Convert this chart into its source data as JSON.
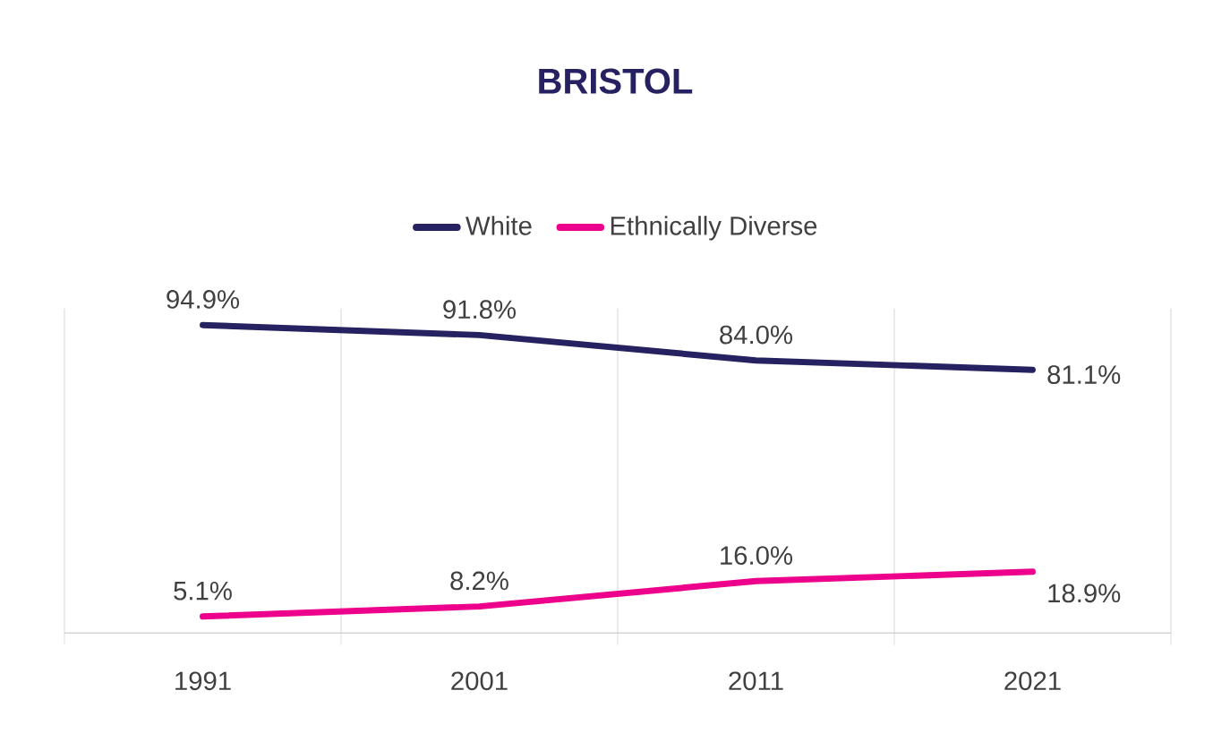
{
  "chart_data": {
    "type": "line",
    "title": "BRISTOL",
    "categories": [
      "1991",
      "2001",
      "2011",
      "2021"
    ],
    "series": [
      {
        "name": "White",
        "color": "#262262",
        "values": [
          94.9,
          91.8,
          84.0,
          81.1
        ],
        "value_labels": [
          "94.9%",
          "91.8%",
          "84.0%",
          "81.1%"
        ]
      },
      {
        "name": "Ethnically Diverse",
        "color": "#ec008c",
        "values": [
          5.1,
          8.2,
          16.0,
          18.9
        ],
        "value_labels": [
          "5.1%",
          "8.2%",
          "16.0%",
          "18.9%"
        ]
      }
    ],
    "ylim": [
      0,
      100
    ],
    "grid": "x",
    "legend": "top",
    "marker": "none",
    "line_style": "solid",
    "tick_labels": "x"
  }
}
